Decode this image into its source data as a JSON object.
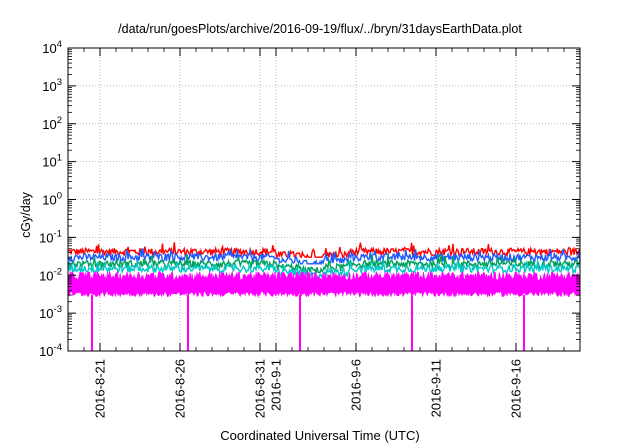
{
  "chart_data": {
    "type": "line",
    "title": "/data/run/goesPlots/archive/2016-09-19/flux/../bryn/31daysEarthData.plot",
    "xlabel": "Coordinated Universal Time (UTC)",
    "ylabel": "cGy/day",
    "y_scale": "log",
    "ylim": [
      0.0001,
      10000
    ],
    "y_ticks": [
      {
        "base": "10",
        "exp": "-4"
      },
      {
        "base": "10",
        "exp": "-3"
      },
      {
        "base": "10",
        "exp": "-2"
      },
      {
        "base": "10",
        "exp": "-1"
      },
      {
        "base": "10",
        "exp": "0"
      },
      {
        "base": "10",
        "exp": "1"
      },
      {
        "base": "10",
        "exp": "2"
      },
      {
        "base": "10",
        "exp": "3"
      },
      {
        "base": "10",
        "exp": "4"
      }
    ],
    "xlim": [
      "2016-08-19",
      "2016-09-20"
    ],
    "x_ticks": [
      "2016-8-21",
      "2016-8-26",
      "2016-8-31",
      "2016-9-1",
      "2016-9-6",
      "2016-9-11",
      "2016-9-16"
    ],
    "x_tick_values": [
      "2016-08-21",
      "2016-08-26",
      "2016-08-31",
      "2016-09-01",
      "2016-09-06",
      "2016-09-11",
      "2016-09-16"
    ],
    "grid": true,
    "colors": {
      "red": "#ff0000",
      "blue": "#1e5aff",
      "green": "#00a060",
      "cyan": "#00c8c8",
      "magenta": "#ff00ff"
    },
    "series": [
      {
        "color": "red",
        "typical_value": 0.042,
        "range": [
          0.03,
          0.1
        ]
      },
      {
        "color": "blue",
        "typical_value": 0.03,
        "range": [
          0.02,
          0.055
        ]
      },
      {
        "color": "green",
        "typical_value": 0.02,
        "range": [
          0.012,
          0.035
        ]
      },
      {
        "color": "cyan",
        "typical_value": 0.015,
        "range": [
          0.008,
          0.03
        ]
      },
      {
        "color": "magenta",
        "typical_value": 0.006,
        "range": [
          0.003,
          0.012
        ],
        "dropouts": [
          "2016-08-20",
          "2016-08-26",
          "2016-09-02",
          "2016-09-09",
          "2016-09-16"
        ]
      }
    ]
  }
}
